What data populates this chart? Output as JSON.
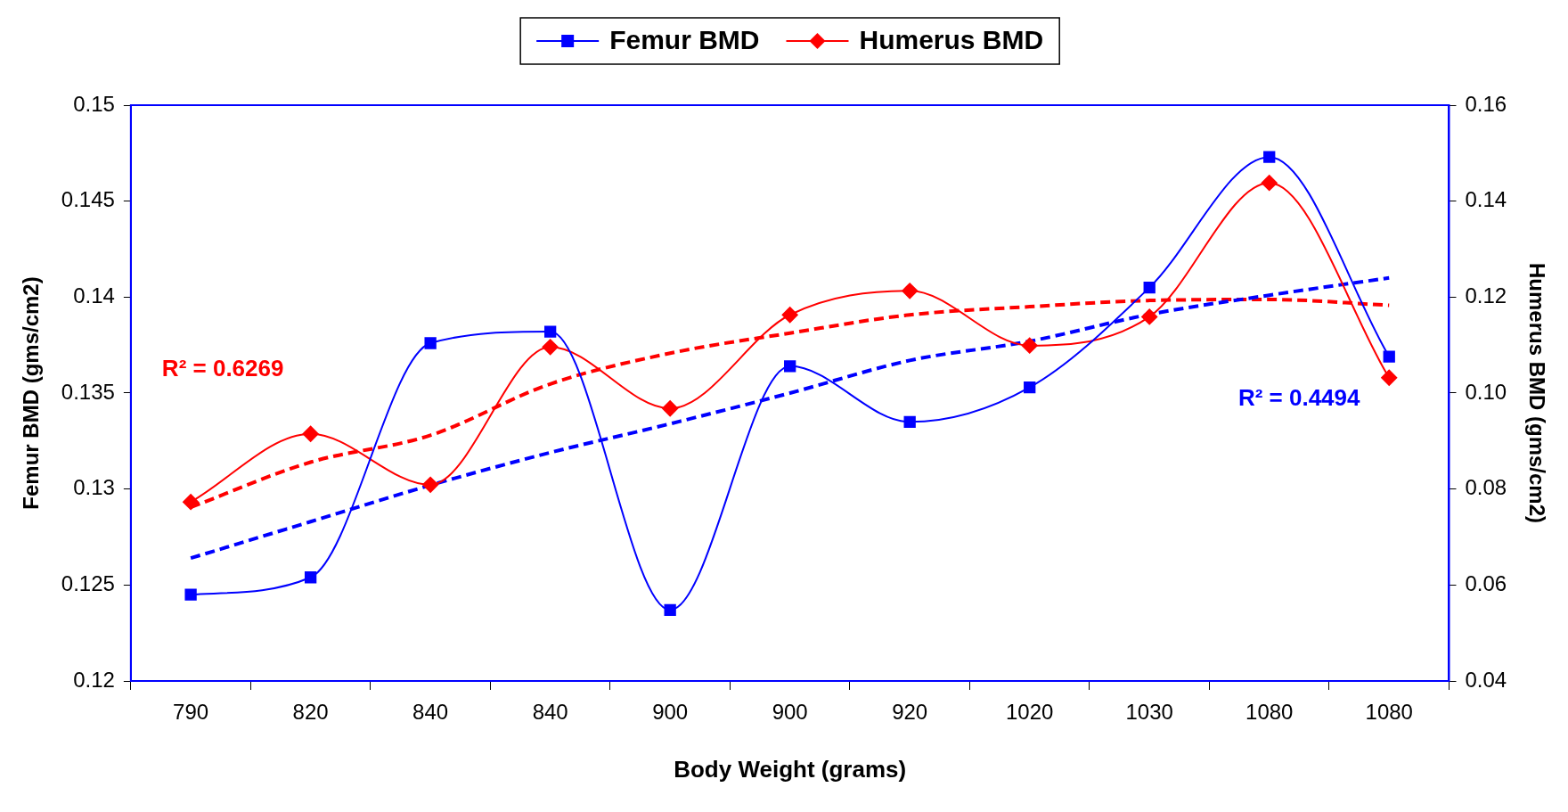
{
  "chart_data": {
    "type": "line",
    "xlabel": "Body Weight (grams)",
    "ylabel": "Femur BMD (gms/cm2)",
    "y2label": "Humerus BMD (gms/cm2)",
    "categories": [
      "790",
      "820",
      "840",
      "840",
      "900",
      "900",
      "920",
      "1020",
      "1030",
      "1080",
      "1080"
    ],
    "series": [
      {
        "name": "Femur BMD",
        "color": "#0000ff",
        "marker": "square",
        "line_style": "solid",
        "values": [
          0.1245,
          0.1254,
          0.1376,
          0.1382,
          0.1237,
          0.1364,
          0.1335,
          0.1353,
          0.1405,
          0.1473,
          0.1369
        ]
      },
      {
        "name": "Humerus BMD",
        "color": "#ff0000",
        "marker": "diamond",
        "line_style": "solid",
        "axis": "y2",
        "values": [
          0.0773,
          0.0915,
          0.0809,
          0.1096,
          0.0968,
          0.1163,
          0.1213,
          0.1099,
          0.1159,
          0.1438,
          0.1032
        ]
      },
      {
        "type": "line",
        "color": "#0000ff",
        "marker": "none",
        "line_style": "dashed",
        "values": [
          0.1264,
          0.1283,
          0.1302,
          0.1319,
          0.1334,
          0.135,
          0.1367,
          0.1377,
          0.1391,
          0.1401,
          0.141
        ]
      },
      {
        "type": "line",
        "color": "#ff0000",
        "marker": "none",
        "line_style": "dashed",
        "axis": "y2",
        "values": [
          0.0762,
          0.0856,
          0.0912,
          0.1019,
          0.1083,
          0.1125,
          0.1163,
          0.118,
          0.1193,
          0.1195,
          0.1183
        ]
      }
    ],
    "ylim": [
      0.12,
      0.15
    ],
    "yticks": [
      0.12,
      0.125,
      0.13,
      0.135,
      0.14,
      0.145,
      0.15
    ],
    "y2lim": [
      0.04,
      0.16
    ],
    "y2ticks": [
      {
        "value": 0.04,
        "label": "0.04"
      },
      {
        "value": 0.06,
        "label": "0.06"
      },
      {
        "value": 0.08,
        "label": "0.08"
      },
      {
        "value": 0.1,
        "label": "0.10"
      },
      {
        "value": 0.12,
        "label": "0.12"
      },
      {
        "value": 0.14,
        "label": "0.14"
      },
      {
        "value": 0.16,
        "label": "0.16"
      }
    ],
    "annotations": [
      "R² = 0.6269",
      "R² = 0.4494"
    ],
    "grid": false,
    "legend": "top"
  }
}
